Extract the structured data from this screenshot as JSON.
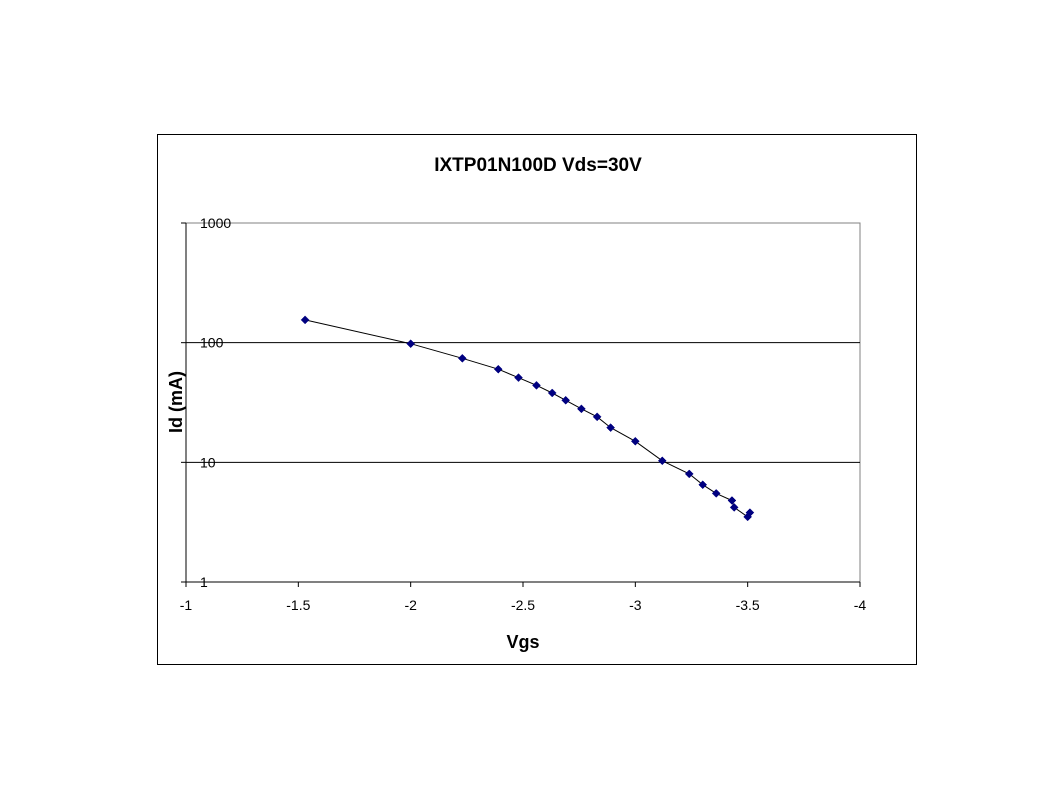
{
  "chart_data": {
    "type": "line",
    "title": "IXTP01N100D Vds=30V",
    "xlabel": "Vgs",
    "ylabel": "Id (mA)",
    "x_axis": {
      "range": [
        -1,
        -4
      ],
      "reversed": true,
      "ticks": [
        -1,
        -1.5,
        -2,
        -2.5,
        -3,
        -3.5,
        -4
      ],
      "tick_labels": [
        "-1",
        "-1.5",
        "-2",
        "-2.5",
        "-3",
        "-3.5",
        "-4"
      ]
    },
    "y_axis": {
      "scale": "log",
      "range": [
        1,
        1000
      ],
      "ticks": [
        1,
        10,
        100,
        1000
      ],
      "tick_labels": [
        "1",
        "10",
        "100",
        "1000"
      ]
    },
    "grid": {
      "horizontal_major": true,
      "vertical": false
    },
    "legend": "none",
    "series_color": "#000080",
    "line_color": "#000000",
    "marker": "diamond",
    "points": [
      {
        "x": -1.53,
        "y": 155
      },
      {
        "x": -2.0,
        "y": 98
      },
      {
        "x": -2.23,
        "y": 74
      },
      {
        "x": -2.39,
        "y": 60
      },
      {
        "x": -2.48,
        "y": 51
      },
      {
        "x": -2.56,
        "y": 44
      },
      {
        "x": -2.63,
        "y": 38
      },
      {
        "x": -2.69,
        "y": 33
      },
      {
        "x": -2.76,
        "y": 28
      },
      {
        "x": -2.83,
        "y": 24
      },
      {
        "x": -2.89,
        "y": 19.5
      },
      {
        "x": -3.0,
        "y": 15
      },
      {
        "x": -3.12,
        "y": 10.3
      },
      {
        "x": -3.24,
        "y": 8.0
      },
      {
        "x": -3.3,
        "y": 6.5
      },
      {
        "x": -3.36,
        "y": 5.5
      },
      {
        "x": -3.43,
        "y": 4.8
      },
      {
        "x": -3.44,
        "y": 4.2
      },
      {
        "x": -3.5,
        "y": 3.5
      },
      {
        "x": -3.51,
        "y": 3.8
      }
    ]
  }
}
